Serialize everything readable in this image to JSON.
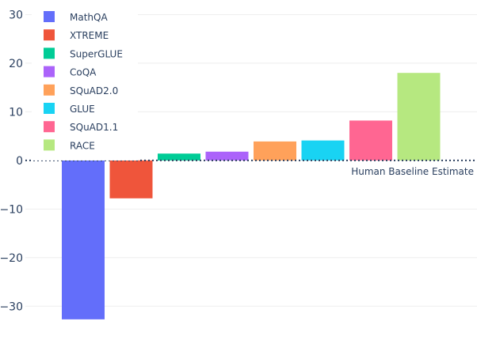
{
  "chart_data": {
    "type": "bar",
    "title": "",
    "xlabel": "",
    "ylabel": "",
    "ylim": [
      -35,
      33
    ],
    "yticks": [
      -30,
      -20,
      -10,
      0,
      10,
      20,
      30
    ],
    "grid": true,
    "legend_position": "top-left",
    "categories": [
      "MathQA",
      "XTREME",
      "SuperGLUE",
      "CoQA",
      "SQuAD2.0",
      "GLUE",
      "SQuAD1.1",
      "RACE"
    ],
    "values": [
      -32.7,
      -7.8,
      1.4,
      1.8,
      3.9,
      4.1,
      8.2,
      18.0
    ],
    "colors": [
      "#636efa",
      "#ef553b",
      "#00cc96",
      "#ab63fa",
      "#ffa15a",
      "#19d3f3",
      "#ff6692",
      "#b6e880"
    ],
    "reference_line": {
      "y": 0,
      "label": "Human Baseline Estimate",
      "style": "dotted"
    }
  }
}
